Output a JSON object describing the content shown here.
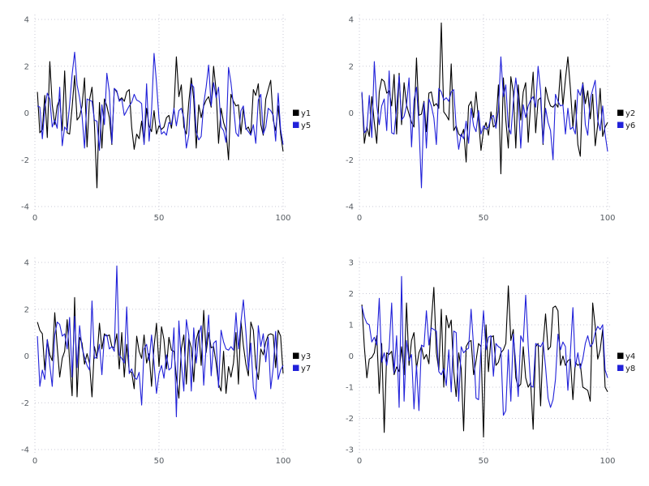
{
  "page": {
    "background": "#ffffff"
  },
  "style": {
    "grid_color": "#c9c9d6",
    "tick_label_color": "#555b61",
    "legend_text_color": "#1a1a1a",
    "black_series_color": "#000000",
    "blue_series_color": "#2121d9"
  },
  "chart_data": [
    {
      "type": "line",
      "position": "top-left",
      "title": "",
      "xlabel": "",
      "ylabel": "",
      "xlim": [
        0,
        100
      ],
      "ylim": [
        -4,
        4
      ],
      "x_ticks": [
        0,
        50,
        100
      ],
      "y_ticks": [
        -4,
        -2,
        0,
        2,
        4
      ],
      "grid": true,
      "legend_position": "right",
      "x_start": 1,
      "x_step": 1,
      "series": [
        {
          "name": "y1",
          "color": "#000000",
          "values": [
            0.9,
            -0.85,
            -0.7,
            0.75,
            -1.05,
            2.2,
            0.35,
            -0.5,
            0.3,
            0.6,
            -0.75,
            1.8,
            -0.85,
            -0.9,
            0.25,
            1.6,
            -0.3,
            -0.15,
            0.3,
            1.5,
            -1.45,
            0.55,
            1.1,
            -0.5,
            -3.2,
            0.45,
            -1.5,
            0.6,
            0.3,
            -0.2,
            -1.35,
            1.05,
            0.9,
            0.55,
            0.65,
            0.5,
            0.9,
            1.0,
            -0.6,
            -1.55,
            -0.9,
            -1.1,
            -0.35,
            -1.3,
            0.2,
            -0.55,
            -0.8,
            0.1,
            -0.9,
            -0.55,
            -0.7,
            -0.6,
            -0.2,
            -0.1,
            -0.65,
            0.15,
            2.4,
            0.7,
            1.2,
            -0.6,
            -0.9,
            0.45,
            1.5,
            0.6,
            -1.5,
            0.35,
            -0.2,
            0.3,
            0.55,
            0.7,
            0.25,
            2.0,
            0.95,
            -1.3,
            0.2,
            -0.4,
            -0.75,
            -2.0,
            0.8,
            0.5,
            0.3,
            0.35,
            -0.9,
            0.2,
            -0.7,
            -0.6,
            -0.9,
            1.0,
            0.75,
            1.25,
            -0.5,
            -0.95,
            0.6,
            1.0,
            1.4,
            -0.3,
            -0.75,
            0.3,
            -0.9,
            -1.65
          ]
        },
        {
          "name": "y5",
          "color": "#2121d9",
          "values": [
            0.3,
            0.25,
            -1.1,
            0.2,
            0.85,
            0.6,
            -0.6,
            -0.3,
            -0.65,
            1.1,
            -1.4,
            -0.6,
            -0.75,
            0.35,
            1.65,
            2.6,
            1.2,
            0.65,
            -0.1,
            -1.5,
            0.6,
            0.55,
            0.5,
            -0.3,
            -0.35,
            -1.6,
            0.35,
            -0.5,
            1.7,
            0.9,
            -1.3,
            1.05,
            0.95,
            0.5,
            0.6,
            -0.1,
            0.1,
            0.3,
            0.45,
            0.8,
            0.55,
            0.5,
            0.4,
            -1.35,
            1.25,
            -1.2,
            0.1,
            2.55,
            1.3,
            -0.25,
            -0.9,
            -0.8,
            -0.95,
            -0.4,
            -0.5,
            0.2,
            -0.55,
            0.1,
            0.2,
            -0.2,
            -1.5,
            -0.95,
            1.25,
            1.1,
            -0.8,
            -1.15,
            -1.0,
            0.4,
            1.1,
            2.05,
            0.3,
            1.3,
            0.65,
            1.1,
            -0.6,
            -0.75,
            -1.25,
            1.95,
            1.3,
            0.3,
            -0.85,
            -1.0,
            0.1,
            0.3,
            -0.65,
            -0.8,
            -0.95,
            -0.5,
            -1.3,
            0.55,
            0.8,
            -0.9,
            -0.6,
            0.2,
            0.1,
            -0.1,
            -1.2,
            0.85,
            -0.7,
            -1.35
          ]
        }
      ]
    },
    {
      "type": "line",
      "position": "top-right",
      "title": "",
      "xlabel": "",
      "ylabel": "",
      "xlim": [
        0,
        100
      ],
      "ylim": [
        -4,
        4
      ],
      "x_ticks": [
        0,
        50,
        100
      ],
      "y_ticks": [
        -4,
        -2,
        0,
        2,
        4
      ],
      "grid": true,
      "legend_position": "right",
      "x_start": 1,
      "x_step": 1,
      "series": [
        {
          "name": "y2",
          "color": "#000000",
          "values": [
            0.85,
            -1.3,
            -0.6,
            -1.0,
            0.7,
            -0.4,
            -1.3,
            0.9,
            1.45,
            1.35,
            0.85,
            0.95,
            0.3,
            1.65,
            -0.9,
            1.7,
            -0.5,
            1.3,
            0.35,
            -0.05,
            -0.4,
            -0.6,
            2.35,
            -0.1,
            -0.05,
            0.5,
            -0.8,
            0.85,
            0.9,
            0.3,
            0.4,
            0.2,
            3.85,
            0.05,
            -0.1,
            -0.3,
            2.1,
            -0.75,
            -0.55,
            -0.9,
            -1.0,
            -0.7,
            -2.1,
            0.3,
            0.5,
            -0.2,
            0.9,
            -0.3,
            -1.6,
            -0.75,
            -0.4,
            -0.95,
            0.05,
            -0.6,
            -0.5,
            1.2,
            -2.6,
            1.5,
            -0.3,
            -1.5,
            1.55,
            0.9,
            -1.5,
            1.2,
            -0.3,
            0.9,
            1.3,
            -1.25,
            0.4,
            1.75,
            -0.85,
            0.55,
            0.65,
            -1.35,
            1.1,
            0.6,
            0.3,
            0.25,
            0.4,
            0.25,
            1.85,
            0.3,
            1.45,
            2.4,
            1.05,
            -0.6,
            0.55,
            -1.35,
            -1.85,
            1.3,
            0.4,
            0.95,
            -0.25,
            0.8,
            -1.4,
            -0.5,
            1.05,
            -1.0,
            -0.6,
            -0.4
          ]
        },
        {
          "name": "y6",
          "color": "#2121d9",
          "values": [
            0.9,
            -0.85,
            -0.7,
            0.75,
            -1.05,
            2.2,
            0.35,
            -0.5,
            0.3,
            0.6,
            -0.75,
            1.8,
            -0.85,
            -0.9,
            0.25,
            1.6,
            -0.3,
            -0.15,
            0.3,
            1.5,
            -1.45,
            0.55,
            1.1,
            -0.5,
            -3.2,
            0.45,
            -1.5,
            0.6,
            0.3,
            -0.2,
            -1.35,
            1.05,
            0.9,
            0.55,
            0.65,
            0.5,
            0.9,
            1.0,
            -0.6,
            -1.55,
            -0.9,
            -1.1,
            -0.35,
            -1.3,
            0.2,
            -0.55,
            -0.8,
            0.1,
            -0.9,
            -0.55,
            -0.7,
            -0.6,
            -0.2,
            -0.1,
            -0.65,
            0.15,
            2.4,
            0.7,
            1.2,
            -0.6,
            -0.9,
            0.45,
            1.5,
            0.6,
            -1.5,
            0.35,
            -0.2,
            0.3,
            0.55,
            0.7,
            0.25,
            2.0,
            0.95,
            -1.3,
            0.2,
            -0.4,
            -0.75,
            -2.0,
            0.8,
            0.5,
            0.3,
            0.35,
            -0.9,
            0.2,
            -0.7,
            -0.6,
            -0.9,
            1.0,
            0.75,
            1.25,
            -0.5,
            -0.95,
            0.6,
            1.0,
            1.4,
            -0.3,
            -0.75,
            0.3,
            -0.9,
            -1.65
          ]
        }
      ]
    },
    {
      "type": "line",
      "position": "bottom-left",
      "title": "",
      "xlabel": "",
      "ylabel": "",
      "xlim": [
        0,
        100
      ],
      "ylim": [
        -4,
        4
      ],
      "x_ticks": [
        0,
        50,
        100
      ],
      "y_ticks": [
        -4,
        -2,
        0,
        2,
        4
      ],
      "grid": true,
      "legend_position": "right",
      "x_start": 1,
      "x_step": 1,
      "series": [
        {
          "name": "y3",
          "color": "#000000",
          "values": [
            1.45,
            1.1,
            0.95,
            -0.6,
            0.7,
            0.05,
            -0.2,
            1.85,
            0.4,
            -0.9,
            -0.1,
            0.2,
            1.55,
            -0.25,
            -1.7,
            2.5,
            -1.75,
            0.8,
            0.55,
            -0.35,
            0.1,
            -0.3,
            -1.75,
            0.4,
            -0.1,
            1.4,
            0.3,
            0.95,
            0.85,
            0.9,
            0.4,
            0.35,
            0.95,
            -0.55,
            1.0,
            -0.9,
            0.5,
            -0.65,
            -0.7,
            -1.4,
            0.85,
            0.2,
            -0.1,
            0.9,
            -0.3,
            0.1,
            -1.3,
            0.4,
            1.4,
            -0.45,
            1.25,
            0.7,
            -0.55,
            0.8,
            0.25,
            0.2,
            -0.9,
            -1.8,
            0.3,
            0.9,
            -1.2,
            0.75,
            0.35,
            -1.1,
            0.7,
            1.1,
            -0.4,
            1.95,
            0.15,
            1.0,
            0.35,
            0.4,
            -0.3,
            -1.2,
            -1.5,
            0.2,
            -1.6,
            -0.45,
            -0.9,
            -0.3,
            1.0,
            -1.2,
            1.5,
            0.45,
            -0.35,
            -0.85,
            1.45,
            1.1,
            -0.45,
            -1.0,
            0.3,
            0.05,
            0.6,
            0.9,
            0.95,
            0.9,
            -0.5,
            1.1,
            0.85,
            -0.75
          ]
        },
        {
          "name": "y7",
          "color": "#2121d9",
          "values": [
            0.85,
            -1.3,
            -0.6,
            -1.0,
            0.7,
            -0.4,
            -1.3,
            0.9,
            1.45,
            1.35,
            0.85,
            0.95,
            0.3,
            1.65,
            -0.9,
            1.7,
            -0.5,
            1.3,
            0.35,
            -0.05,
            -0.4,
            -0.6,
            2.35,
            -0.1,
            -0.05,
            0.5,
            -0.8,
            0.85,
            0.9,
            0.3,
            0.4,
            0.2,
            3.85,
            0.05,
            -0.1,
            -0.3,
            2.1,
            -0.75,
            -0.55,
            -0.9,
            -1.0,
            -0.7,
            -2.1,
            0.3,
            0.5,
            -0.2,
            0.9,
            -0.3,
            -1.6,
            -0.75,
            -0.4,
            -0.95,
            0.05,
            -0.6,
            -0.5,
            1.2,
            -2.6,
            1.5,
            -0.3,
            -1.5,
            1.55,
            0.9,
            -1.5,
            1.2,
            -0.3,
            0.9,
            1.3,
            -1.25,
            0.4,
            1.75,
            -0.85,
            0.55,
            0.65,
            -1.35,
            1.1,
            0.6,
            0.3,
            0.25,
            0.4,
            0.25,
            1.85,
            0.3,
            1.45,
            2.4,
            1.05,
            -0.6,
            0.55,
            -1.35,
            -1.85,
            1.3,
            0.4,
            0.95,
            -0.25,
            0.8,
            -1.4,
            -0.5,
            1.05,
            -1.0,
            -0.6,
            -0.4
          ]
        }
      ]
    },
    {
      "type": "line",
      "position": "bottom-right",
      "title": "",
      "xlabel": "",
      "ylabel": "",
      "xlim": [
        0,
        100
      ],
      "ylim": [
        -3,
        3
      ],
      "x_ticks": [
        0,
        50,
        100
      ],
      "y_ticks": [
        -3,
        -2,
        -1,
        0,
        1,
        2,
        3
      ],
      "grid": true,
      "legend_position": "right",
      "x_start": 1,
      "x_step": 1,
      "series": [
        {
          "name": "y4",
          "color": "#000000",
          "values": [
            1.65,
            0.3,
            -0.7,
            -0.1,
            -0.05,
            0.1,
            0.65,
            -1.2,
            0.4,
            -2.45,
            0.1,
            0.05,
            0.15,
            -0.6,
            -0.35,
            -0.5,
            0.3,
            -0.6,
            1.7,
            -0.3,
            0.5,
            0.75,
            -0.4,
            0.1,
            0.3,
            -0.1,
            0.05,
            -0.25,
            1.1,
            2.2,
            0.1,
            -0.45,
            1.5,
            -1.0,
            1.3,
            0.9,
            1.15,
            -0.5,
            -1.3,
            0.1,
            -0.4,
            -2.4,
            0.3,
            0.45,
            0.5,
            -0.6,
            -0.15,
            0.4,
            0.3,
            -2.6,
            1.0,
            -0.5,
            0.6,
            0.65,
            -0.3,
            -0.2,
            0.1,
            0.2,
            0.4,
            2.25,
            0.5,
            0.85,
            -0.7,
            -1.0,
            -0.9,
            0.3,
            -0.7,
            -1.0,
            -0.85,
            -2.35,
            0.3,
            0.4,
            -1.6,
            0.35,
            1.35,
            0.2,
            0.3,
            1.55,
            1.6,
            1.45,
            -0.3,
            0.0,
            -0.3,
            -0.15,
            -0.1,
            -1.4,
            -0.2,
            -0.3,
            -0.25,
            -1.0,
            -1.05,
            -1.1,
            -1.45,
            1.7,
            0.95,
            -0.1,
            0.2,
            0.85,
            -1.0,
            -1.15
          ]
        },
        {
          "name": "y8",
          "color": "#2121d9",
          "values": [
            1.6,
            1.25,
            1.05,
            1.0,
            0.45,
            0.6,
            0.35,
            1.85,
            -0.2,
            0.1,
            -0.3,
            0.25,
            1.7,
            -0.55,
            0.65,
            -1.65,
            2.55,
            -1.45,
            0.5,
            -0.15,
            0.05,
            -1.7,
            -0.3,
            -1.75,
            0.35,
            0.3,
            1.45,
            0.35,
            0.9,
            0.85,
            0.8,
            -0.5,
            -0.6,
            -0.4,
            -0.95,
            0.2,
            -1.15,
            0.8,
            0.75,
            -1.45,
            0.3,
            0.1,
            0.2,
            0.25,
            1.5,
            0.3,
            -1.35,
            -1.4,
            0.25,
            1.45,
            0.2,
            0.6,
            0.65,
            -0.65,
            0.4,
            0.3,
            0.25,
            -1.9,
            -1.75,
            0.2,
            -1.45,
            0.7,
            -0.25,
            -1.3,
            0.65,
            0.45,
            1.95,
            0.35,
            -0.95,
            -1.0,
            0.4,
            0.35,
            0.3,
            0.45,
            -0.35,
            -1.35,
            -1.65,
            -1.4,
            -0.75,
            0.7,
            0.2,
            0.45,
            0.3,
            -1.1,
            0.1,
            1.55,
            -0.35,
            0.1,
            -0.4,
            -0.1,
            0.4,
            0.65,
            0.3,
            0.4,
            0.75,
            0.95,
            0.85,
            1.0,
            -0.45,
            -0.7
          ]
        }
      ]
    }
  ]
}
